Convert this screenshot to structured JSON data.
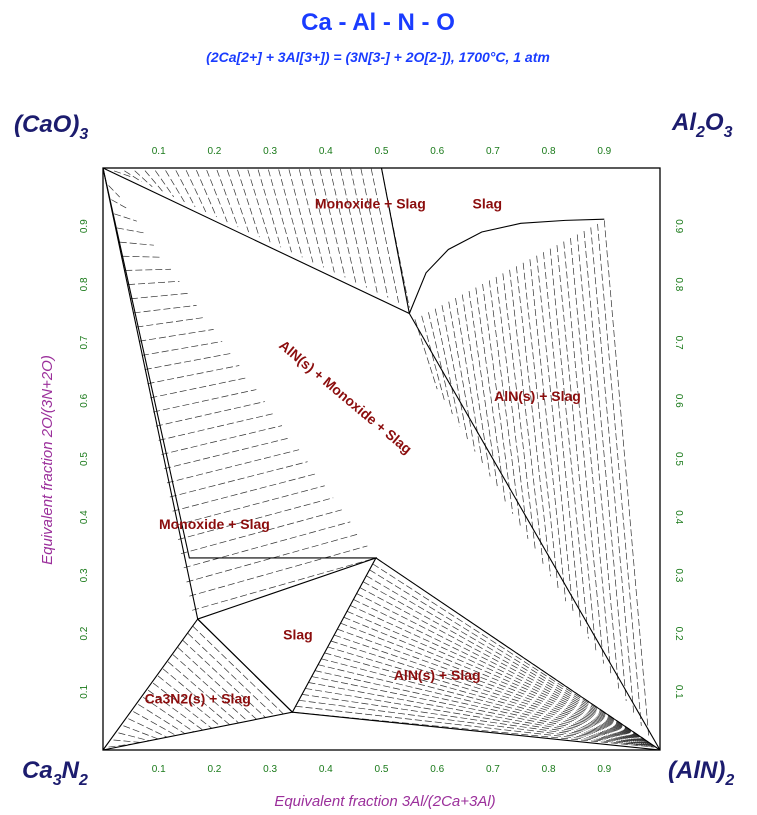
{
  "title": "Ca - Al - N - O",
  "subtitle": "(2Ca[2+] + 3Al[3+]) = (3N[3-] + 2O[2-]), 1700°C, 1 atm",
  "corners": {
    "top_left": {
      "main": "(CaO)",
      "sub": "3"
    },
    "top_right": {
      "main": "Al",
      "sub1": "2",
      "main2": "O",
      "sub2": "3"
    },
    "bottom_left": {
      "main": "Ca",
      "sub1": "3",
      "main2": "N",
      "sub2": "2"
    },
    "bottom_right": {
      "main": "(AlN)",
      "sub": "2"
    }
  },
  "colors": {
    "title": "#1a3cff",
    "corner_labels": "#1c1c6e",
    "axis_titles": "#9b2f9b",
    "ticks": "#1a7a1a",
    "region_labels": "#8b0d0d"
  },
  "chart_data": {
    "type": "ternary-reciprocal-phase-diagram",
    "title": "Ca - Al - N - O",
    "subtitle": "(2Ca[2+] + 3Al[3+]) = (3N[3-] + 2O[2-]), 1700°C, 1 atm",
    "xlabel": "Equivalent fraction  3Al/(2Ca+3Al)",
    "ylabel": "Equivalent fraction  2O/(3N+2O)",
    "xlim": [
      0,
      1
    ],
    "ylim": [
      0,
      1
    ],
    "x_ticks": [
      "0.1",
      "0.2",
      "0.3",
      "0.4",
      "0.5",
      "0.6",
      "0.7",
      "0.8",
      "0.9"
    ],
    "y_ticks": [
      "0.1",
      "0.2",
      "0.3",
      "0.4",
      "0.5",
      "0.6",
      "0.7",
      "0.8",
      "0.9"
    ],
    "tie_lines": "dashed",
    "regions": [
      {
        "label": "Monoxide + Slag",
        "x": 0.48,
        "y": 0.93
      },
      {
        "label": "Slag",
        "x": 0.69,
        "y": 0.93
      },
      {
        "label": "AlN(s) + Monoxide + Slag",
        "x": 0.43,
        "y": 0.6,
        "rotation": 40
      },
      {
        "label": "AlN(s) + Slag",
        "x": 0.78,
        "y": 0.6
      },
      {
        "label": "Monoxide + Slag",
        "x": 0.2,
        "y": 0.38
      },
      {
        "label": "Slag",
        "x": 0.35,
        "y": 0.19
      },
      {
        "label": "AlN(s) + Slag",
        "x": 0.6,
        "y": 0.12
      },
      {
        "label": "Ca3N2(s) + Slag",
        "x": 0.17,
        "y": 0.08
      }
    ],
    "boundaries": [
      {
        "name": "top-left 3-phase edge",
        "points": [
          [
            0,
            1
          ],
          [
            0.55,
            0.75
          ]
        ]
      },
      {
        "name": "monoxide slag edge top",
        "points": [
          [
            0.55,
            0.75
          ],
          [
            0.5,
            1
          ]
        ]
      },
      {
        "name": "slag/AlN upper curve",
        "points": [
          [
            0.55,
            0.75
          ],
          [
            0.58,
            0.82
          ],
          [
            0.62,
            0.86
          ],
          [
            0.68,
            0.89
          ],
          [
            0.75,
            0.905
          ],
          [
            0.83,
            0.91
          ],
          [
            0.9,
            0.912
          ]
        ]
      },
      {
        "name": "AlN tie to corner",
        "points": [
          [
            0.55,
            0.75
          ],
          [
            1,
            0
          ]
        ]
      },
      {
        "name": "left monoxide+slag lens upper",
        "points": [
          [
            0,
            1
          ],
          [
            0.155,
            0.33
          ],
          [
            0.49,
            0.33
          ]
        ]
      },
      {
        "name": "left monoxide+slag lens lower",
        "points": [
          [
            0,
            1
          ],
          [
            0.17,
            0.225
          ]
        ]
      },
      {
        "name": "3-phase triangle lower",
        "points": [
          [
            0.49,
            0.33
          ],
          [
            1,
            0
          ]
        ]
      },
      {
        "name": "slag pocket",
        "points": [
          [
            0.17,
            0.225
          ],
          [
            0.49,
            0.33
          ],
          [
            0.34,
            0.065
          ],
          [
            0.17,
            0.225
          ]
        ]
      },
      {
        "name": "Ca3N2 region",
        "points": [
          [
            0,
            0
          ],
          [
            0.17,
            0.225
          ],
          [
            0.34,
            0.065
          ],
          [
            0,
            0
          ]
        ]
      },
      {
        "name": "AlN lower tie",
        "points": [
          [
            0.34,
            0.065
          ],
          [
            1,
            0
          ]
        ]
      }
    ]
  }
}
